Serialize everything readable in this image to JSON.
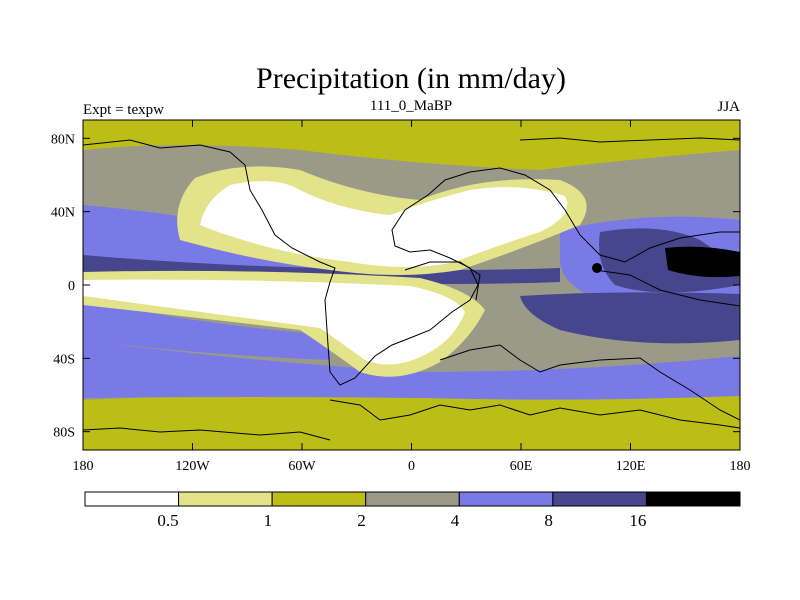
{
  "chart_data": {
    "type": "heatmap",
    "title": "Precipitation (in mm/day)",
    "left_string": "Expt = texpw",
    "center_string": "111_0_MaBP",
    "right_string": "JJA",
    "x_ticks": [
      "180",
      "120W",
      "60W",
      "0",
      "60E",
      "120E",
      "180"
    ],
    "x_tick_values": [
      -180,
      -120,
      -60,
      0,
      60,
      120,
      180
    ],
    "y_ticks": [
      "80N",
      "40N",
      "0",
      "40S",
      "80S"
    ],
    "y_tick_values": [
      80,
      40,
      0,
      -40,
      -80
    ],
    "xlim": [
      -180,
      180
    ],
    "ylim": [
      -90,
      90
    ],
    "units": "mm/day",
    "colorbar": {
      "levels": [
        0.5,
        1,
        2,
        4,
        8,
        16
      ],
      "labels": [
        "0.5",
        "1",
        "2",
        "4",
        "8",
        "16"
      ],
      "colors": [
        "#ffffff",
        "#e3e38a",
        "#bdbd18",
        "#9a9a88",
        "#7a7ae6",
        "#46468c",
        "#000000"
      ]
    }
  }
}
